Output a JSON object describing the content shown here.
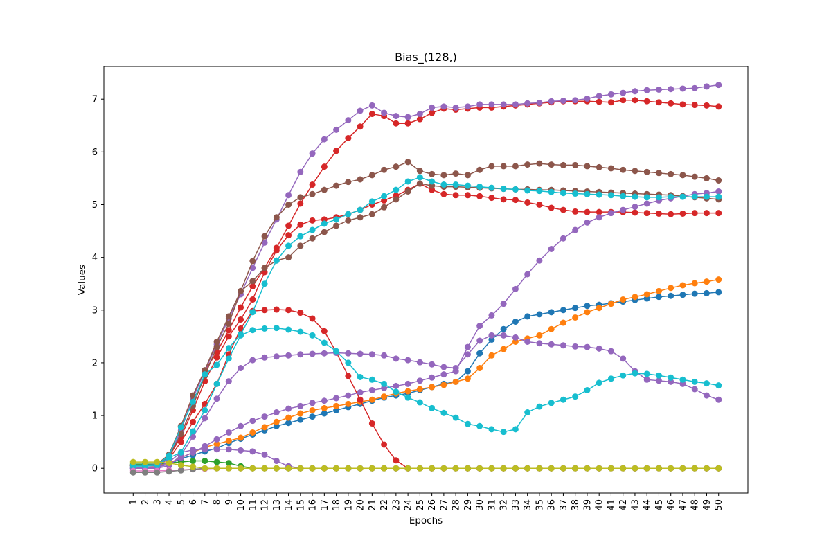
{
  "chart_data": {
    "type": "line",
    "title": "Bias_(128,)",
    "xlabel": "Epochs",
    "ylabel": "Values",
    "x": [
      1,
      2,
      3,
      4,
      5,
      6,
      7,
      8,
      9,
      10,
      11,
      12,
      13,
      14,
      15,
      16,
      17,
      18,
      19,
      20,
      21,
      22,
      23,
      24,
      25,
      26,
      27,
      28,
      29,
      30,
      31,
      32,
      33,
      34,
      35,
      36,
      37,
      38,
      39,
      40,
      41,
      42,
      43,
      44,
      45,
      46,
      47,
      48,
      49,
      50
    ],
    "xticks": [
      "1",
      "2",
      "3",
      "4",
      "5",
      "6",
      "7",
      "8",
      "9",
      "10",
      "11",
      "12",
      "13",
      "14",
      "15",
      "16",
      "17",
      "18",
      "19",
      "20",
      "21",
      "22",
      "23",
      "24",
      "25",
      "26",
      "27",
      "28",
      "29",
      "30",
      "31",
      "32",
      "33",
      "34",
      "35",
      "36",
      "37",
      "38",
      "39",
      "40",
      "41",
      "42",
      "43",
      "44",
      "45",
      "46",
      "47",
      "48",
      "49",
      "50"
    ],
    "xlim": [
      -1.45,
      52.45
    ],
    "ylim": [
      -0.47,
      7.62
    ],
    "yticks": [
      0,
      1,
      2,
      3,
      4,
      5,
      6,
      7
    ],
    "grid": false,
    "marker": "circle",
    "series": [
      {
        "color": "#1f77b4",
        "values": [
          0.0,
          0.0,
          0.02,
          0.08,
          0.18,
          0.25,
          0.32,
          0.38,
          0.48,
          0.56,
          0.64,
          0.72,
          0.8,
          0.86,
          0.92,
          0.98,
          1.04,
          1.1,
          1.16,
          1.22,
          1.28,
          1.34,
          1.38,
          1.42,
          1.48,
          1.54,
          1.6,
          1.64,
          1.84,
          2.18,
          2.44,
          2.64,
          2.78,
          2.88,
          2.92,
          2.96,
          3.0,
          3.04,
          3.08,
          3.1,
          3.13,
          3.16,
          3.19,
          3.22,
          3.25,
          3.27,
          3.29,
          3.31,
          3.32,
          3.34
        ]
      },
      {
        "color": "#ff7f0e",
        "values": [
          0.05,
          0.05,
          0.05,
          0.1,
          0.2,
          0.3,
          0.4,
          0.46,
          0.52,
          0.58,
          0.68,
          0.78,
          0.88,
          0.96,
          1.04,
          1.1,
          1.14,
          1.18,
          1.22,
          1.26,
          1.3,
          1.36,
          1.42,
          1.46,
          1.5,
          1.54,
          1.58,
          1.64,
          1.7,
          1.9,
          2.14,
          2.26,
          2.4,
          2.46,
          2.52,
          2.64,
          2.76,
          2.86,
          2.96,
          3.04,
          3.12,
          3.2,
          3.25,
          3.3,
          3.36,
          3.42,
          3.47,
          3.51,
          3.54,
          3.58
        ]
      },
      {
        "color": "#2ca02c",
        "values": [
          0.08,
          0.08,
          0.08,
          0.1,
          0.12,
          0.14,
          0.14,
          0.12,
          0.1,
          0.04,
          0.0,
          0.0,
          0.0,
          0.0,
          0.0,
          0.0,
          0.0,
          0.0,
          0.0,
          0.0,
          0.0,
          0.0,
          0.0,
          0.0,
          0.0,
          0.0,
          0.0,
          0.0,
          0.0,
          0.0,
          0.0,
          0.0,
          0.0,
          0.0,
          0.0,
          0.0,
          0.0,
          0.0,
          0.0,
          0.0,
          0.0,
          0.0,
          0.0,
          0.0,
          0.0,
          0.0,
          0.0,
          0.0,
          0.0,
          0.0
        ]
      },
      {
        "color": "#d62728",
        "values": [
          0.05,
          0.05,
          0.06,
          0.25,
          0.8,
          1.38,
          1.85,
          2.2,
          2.62,
          3.05,
          3.45,
          3.8,
          4.18,
          4.6,
          5.02,
          5.38,
          5.72,
          6.02,
          6.26,
          6.48,
          6.72,
          6.68,
          6.54,
          6.54,
          6.62,
          6.74,
          6.82,
          6.8,
          6.82,
          6.84,
          6.84,
          6.86,
          6.88,
          6.9,
          6.92,
          6.94,
          6.96,
          6.96,
          6.96,
          6.95,
          6.94,
          6.98,
          6.98,
          6.96,
          6.94,
          6.92,
          6.9,
          6.89,
          6.88,
          6.86
        ]
      },
      {
        "color": "#d62728",
        "values": [
          0.05,
          0.05,
          0.05,
          0.22,
          0.6,
          1.1,
          1.65,
          2.1,
          2.5,
          2.82,
          3.2,
          3.72,
          4.13,
          4.42,
          4.62,
          4.7,
          4.72,
          4.76,
          4.82,
          4.9,
          5.0,
          5.08,
          5.17,
          5.28,
          5.4,
          5.28,
          5.2,
          5.18,
          5.18,
          5.16,
          5.13,
          5.1,
          5.09,
          5.04,
          5.0,
          4.94,
          4.9,
          4.87,
          4.86,
          4.86,
          4.86,
          4.86,
          4.85,
          4.84,
          4.83,
          4.82,
          4.83,
          4.84,
          4.84,
          4.84
        ]
      },
      {
        "color": "#d62728",
        "values": [
          0.05,
          0.05,
          0.05,
          0.18,
          0.5,
          0.88,
          1.22,
          1.6,
          2.16,
          2.65,
          2.98,
          3.0,
          3.01,
          3.0,
          2.95,
          2.84,
          2.6,
          2.2,
          1.75,
          1.3,
          0.85,
          0.45,
          0.15,
          0.0,
          0.0,
          0.0,
          0.0,
          0.0,
          0.0,
          0.0,
          0.0,
          0.0,
          0.0,
          0.0,
          0.0,
          0.0,
          0.0,
          0.0,
          0.0,
          0.0,
          0.0,
          0.0,
          0.0,
          0.0,
          0.0,
          0.0,
          0.0,
          0.0,
          0.0,
          0.0
        ]
      },
      {
        "color": "#9467bd",
        "values": [
          0.02,
          0.02,
          0.03,
          0.2,
          0.72,
          1.33,
          1.84,
          2.35,
          2.84,
          3.3,
          3.8,
          4.28,
          4.72,
          5.18,
          5.62,
          5.97,
          6.24,
          6.42,
          6.6,
          6.78,
          6.88,
          6.74,
          6.68,
          6.66,
          6.72,
          6.84,
          6.86,
          6.84,
          6.86,
          6.9,
          6.9,
          6.9,
          6.9,
          6.92,
          6.93,
          6.96,
          6.97,
          6.98,
          7.01,
          7.06,
          7.09,
          7.12,
          7.15,
          7.17,
          7.18,
          7.19,
          7.2,
          7.21,
          7.24,
          7.27
        ]
      },
      {
        "color": "#9467bd",
        "values": [
          0.0,
          0.0,
          0.02,
          0.08,
          0.2,
          0.3,
          0.42,
          0.55,
          0.68,
          0.8,
          0.9,
          0.98,
          1.06,
          1.13,
          1.18,
          1.24,
          1.28,
          1.33,
          1.38,
          1.44,
          1.48,
          1.52,
          1.56,
          1.6,
          1.66,
          1.72,
          1.78,
          1.84,
          2.3,
          2.7,
          2.9,
          3.12,
          3.4,
          3.68,
          3.94,
          4.16,
          4.36,
          4.52,
          4.66,
          4.76,
          4.84,
          4.9,
          4.96,
          5.02,
          5.08,
          5.12,
          5.16,
          5.2,
          5.22,
          5.25
        ]
      },
      {
        "color": "#9467bd",
        "values": [
          0.0,
          0.0,
          0.0,
          0.05,
          0.25,
          0.6,
          0.95,
          1.32,
          1.65,
          1.9,
          2.05,
          2.1,
          2.12,
          2.14,
          2.16,
          2.17,
          2.18,
          2.19,
          2.18,
          2.17,
          2.16,
          2.14,
          2.08,
          2.05,
          2.01,
          1.97,
          1.92,
          1.9,
          2.16,
          2.42,
          2.52,
          2.52,
          2.48,
          2.4,
          2.37,
          2.35,
          2.33,
          2.31,
          2.3,
          2.27,
          2.22,
          2.08,
          1.84,
          1.68,
          1.66,
          1.64,
          1.6,
          1.5,
          1.38,
          1.3
        ]
      },
      {
        "color": "#9467bd",
        "values": [
          0.0,
          0.0,
          0.02,
          0.12,
          0.3,
          0.35,
          0.36,
          0.36,
          0.36,
          0.34,
          0.32,
          0.26,
          0.14,
          0.04,
          0.0,
          0.0,
          0.0,
          0.0,
          0.0,
          0.0,
          0.0,
          0.0,
          0.0,
          0.0,
          0.0,
          0.0,
          0.0,
          0.0,
          0.0,
          0.0,
          0.0,
          0.0,
          0.0,
          0.0,
          0.0,
          0.0,
          0.0,
          0.0,
          0.0,
          0.0,
          0.0,
          0.0,
          0.0,
          0.0,
          0.0,
          0.0,
          0.0,
          0.0,
          0.0,
          0.0
        ]
      },
      {
        "color": "#8c564b",
        "values": [
          0.06,
          0.06,
          0.08,
          0.26,
          0.8,
          1.38,
          1.86,
          2.4,
          2.88,
          3.36,
          3.93,
          4.4,
          4.76,
          5.0,
          5.14,
          5.2,
          5.28,
          5.36,
          5.43,
          5.48,
          5.56,
          5.66,
          5.72,
          5.81,
          5.64,
          5.58,
          5.56,
          5.59,
          5.56,
          5.66,
          5.73,
          5.73,
          5.73,
          5.76,
          5.78,
          5.76,
          5.75,
          5.75,
          5.73,
          5.71,
          5.69,
          5.66,
          5.64,
          5.62,
          5.6,
          5.58,
          5.56,
          5.53,
          5.5,
          5.46
        ]
      },
      {
        "color": "#8c564b",
        "values": [
          0.06,
          0.06,
          0.07,
          0.22,
          0.65,
          1.18,
          1.76,
          2.3,
          2.74,
          3.36,
          3.55,
          3.8,
          3.94,
          4.0,
          4.22,
          4.36,
          4.48,
          4.6,
          4.7,
          4.76,
          4.82,
          4.95,
          5.1,
          5.25,
          5.4,
          5.36,
          5.34,
          5.34,
          5.33,
          5.32,
          5.31,
          5.3,
          5.29,
          5.29,
          5.28,
          5.28,
          5.27,
          5.26,
          5.25,
          5.24,
          5.23,
          5.22,
          5.21,
          5.2,
          5.19,
          5.18,
          5.16,
          5.14,
          5.12,
          5.1
        ]
      },
      {
        "color": "#17becf",
        "values": [
          0.04,
          0.04,
          0.06,
          0.2,
          0.3,
          0.7,
          1.1,
          1.6,
          2.08,
          2.52,
          2.62,
          2.65,
          2.66,
          2.63,
          2.59,
          2.52,
          2.38,
          2.22,
          2.0,
          1.73,
          1.68,
          1.6,
          1.45,
          1.34,
          1.25,
          1.14,
          1.05,
          0.96,
          0.84,
          0.8,
          0.74,
          0.69,
          0.74,
          1.06,
          1.17,
          1.24,
          1.3,
          1.36,
          1.48,
          1.62,
          1.7,
          1.76,
          1.8,
          1.79,
          1.76,
          1.72,
          1.68,
          1.64,
          1.61,
          1.57
        ]
      },
      {
        "color": "#17becf",
        "values": [
          0.06,
          0.06,
          0.07,
          0.24,
          0.78,
          1.26,
          1.78,
          1.96,
          2.28,
          2.54,
          2.96,
          3.5,
          3.94,
          4.22,
          4.4,
          4.52,
          4.64,
          4.72,
          4.82,
          4.9,
          5.06,
          5.16,
          5.28,
          5.44,
          5.52,
          5.44,
          5.38,
          5.38,
          5.36,
          5.34,
          5.32,
          5.3,
          5.29,
          5.27,
          5.26,
          5.24,
          5.22,
          5.21,
          5.2,
          5.19,
          5.18,
          5.16,
          5.15,
          5.14,
          5.14,
          5.15,
          5.15,
          5.15,
          5.15,
          5.15
        ]
      },
      {
        "color": "#e377c2",
        "values": [
          -0.05,
          -0.05,
          -0.05,
          -0.04,
          -0.03,
          -0.02,
          -0.01,
          0.0,
          0.0,
          0.0,
          0.0,
          0.0,
          0.0,
          0.0,
          0.0,
          0.0,
          0.0,
          0.0,
          0.0,
          0.0,
          0.0,
          0.0,
          0.0,
          0.0,
          0.0,
          0.0,
          0.0,
          0.0,
          0.0,
          0.0,
          0.0,
          0.0,
          0.0,
          0.0,
          0.0,
          0.0,
          0.0,
          0.0,
          0.0,
          0.0,
          0.0,
          0.0,
          0.0,
          0.0,
          0.0,
          0.0,
          0.0,
          0.0,
          0.0,
          0.0
        ]
      },
      {
        "color": "#7f7f7f",
        "values": [
          -0.08,
          -0.08,
          -0.08,
          -0.06,
          -0.04,
          -0.02,
          0.0,
          0.0,
          0.0,
          0.0,
          0.0,
          0.0,
          0.0,
          0.0,
          0.0,
          0.0,
          0.0,
          0.0,
          0.0,
          0.0,
          0.0,
          0.0,
          0.0,
          0.0,
          0.0,
          0.0,
          0.0,
          0.0,
          0.0,
          0.0,
          0.0,
          0.0,
          0.0,
          0.0,
          0.0,
          0.0,
          0.0,
          0.0,
          0.0,
          0.0,
          0.0,
          0.0,
          0.0,
          0.0,
          0.0,
          0.0,
          0.0,
          0.0,
          0.0,
          0.0
        ]
      },
      {
        "color": "#bcbd22",
        "values": [
          0.12,
          0.12,
          0.12,
          0.1,
          0.06,
          0.03,
          0.0,
          0.0,
          0.0,
          0.0,
          0.0,
          0.0,
          0.0,
          0.0,
          0.0,
          0.0,
          0.0,
          0.0,
          0.0,
          0.0,
          0.0,
          0.0,
          0.0,
          0.0,
          0.0,
          0.0,
          0.0,
          0.0,
          0.0,
          0.0,
          0.0,
          0.0,
          0.0,
          0.0,
          0.0,
          0.0,
          0.0,
          0.0,
          0.0,
          0.0,
          0.0,
          0.0,
          0.0,
          0.0,
          0.0,
          0.0,
          0.0,
          0.0,
          0.0,
          0.0
        ]
      }
    ]
  }
}
